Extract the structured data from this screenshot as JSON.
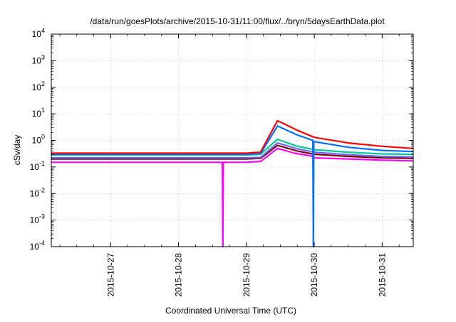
{
  "chart_data": {
    "type": "line",
    "title": "/data/run/goesPlots/archive/2015-10-31/11:00/flux/../bryn/5daysEarthData.plot",
    "xlabel": "Coordinated Universal Time (UTC)",
    "ylabel": "cSv/day",
    "xlim": [
      "2015-10-26 03:00",
      "2015-10-31 11:00"
    ],
    "ylim": [
      0.0001,
      10000
    ],
    "y_scale": "log",
    "grid": true,
    "x_ticks": [
      "2015-10-27",
      "2015-10-28",
      "2015-10-29",
      "2015-10-30",
      "2015-10-31"
    ],
    "y_ticks": [
      {
        "value": 0.0001,
        "base": "10",
        "exp": "-4"
      },
      {
        "value": 0.001,
        "base": "10",
        "exp": "-3"
      },
      {
        "value": 0.01,
        "base": "10",
        "exp": "-2"
      },
      {
        "value": 0.1,
        "base": "10",
        "exp": "-1"
      },
      {
        "value": 1,
        "base": "10",
        "exp": "0"
      },
      {
        "value": 10,
        "base": "10",
        "exp": "1"
      },
      {
        "value": 100,
        "base": "10",
        "exp": "2"
      },
      {
        "value": 1000,
        "base": "10",
        "exp": "3"
      },
      {
        "value": 10000,
        "base": "10",
        "exp": "4"
      }
    ],
    "series": [
      {
        "color": "#ff00ff",
        "x": [
          "2015-10-26 03:00",
          "2015-10-27 00:00",
          "2015-10-28 00:00",
          "2015-10-28 15:30",
          "2015-10-28 15:40",
          "2015-10-28 15:50",
          "2015-10-29 00:00",
          "2015-10-29 05:00",
          "2015-10-29 11:00",
          "2015-10-29 17:00",
          "2015-10-29 23:00",
          "2015-10-30 00:00",
          "2015-10-30 12:00",
          "2015-10-31 00:00",
          "2015-10-31 11:00"
        ],
        "y": [
          0.15,
          0.15,
          0.15,
          0.15,
          0.0001,
          0.15,
          0.15,
          0.16,
          0.5,
          0.33,
          0.26,
          0.22,
          0.2,
          0.18,
          0.17
        ]
      },
      {
        "color": "#800000",
        "x": [
          "2015-10-26 03:00",
          "2015-10-28 00:00",
          "2015-10-29 00:00",
          "2015-10-29 05:00",
          "2015-10-29 11:00",
          "2015-10-29 18:00",
          "2015-10-30 00:00",
          "2015-10-30 12:00",
          "2015-10-31 00:00",
          "2015-10-31 11:00"
        ],
        "y": [
          0.2,
          0.2,
          0.2,
          0.21,
          0.65,
          0.4,
          0.3,
          0.25,
          0.22,
          0.21
        ]
      },
      {
        "color": "#6a6aff",
        "x": [
          "2015-10-26 03:00",
          "2015-10-28 00:00",
          "2015-10-29 00:00",
          "2015-10-29 05:00",
          "2015-10-29 11:00",
          "2015-10-29 18:00",
          "2015-10-30 00:00",
          "2015-10-30 12:00",
          "2015-10-31 00:00",
          "2015-10-31 11:00"
        ],
        "y": [
          0.22,
          0.22,
          0.22,
          0.23,
          0.8,
          0.48,
          0.36,
          0.29,
          0.25,
          0.24
        ]
      },
      {
        "color": "#00c8a0",
        "x": [
          "2015-10-26 03:00",
          "2015-10-28 00:00",
          "2015-10-29 00:00",
          "2015-10-29 05:00",
          "2015-10-29 11:00",
          "2015-10-29 18:00",
          "2015-10-30 00:00",
          "2015-10-30 12:00",
          "2015-10-31 00:00",
          "2015-10-31 11:00"
        ],
        "y": [
          0.28,
          0.28,
          0.28,
          0.3,
          1.1,
          0.6,
          0.45,
          0.36,
          0.31,
          0.3
        ]
      },
      {
        "color": "#0070ff",
        "x": [
          "2015-10-26 03:00",
          "2015-10-28 00:00",
          "2015-10-29 00:00",
          "2015-10-29 05:00",
          "2015-10-29 11:00",
          "2015-10-29 18:00",
          "2015-10-29 23:30",
          "2015-10-29 23:40",
          "2015-10-29 23:50",
          "2015-10-30 12:00",
          "2015-10-31 00:00",
          "2015-10-31 11:00"
        ],
        "y": [
          0.3,
          0.3,
          0.3,
          0.32,
          3.5,
          1.6,
          1.0,
          0.0001,
          0.9,
          0.55,
          0.42,
          0.38
        ]
      },
      {
        "color": "#ff0000",
        "x": [
          "2015-10-26 03:00",
          "2015-10-28 00:00",
          "2015-10-29 00:00",
          "2015-10-29 05:00",
          "2015-10-29 11:00",
          "2015-10-29 18:00",
          "2015-10-30 00:00",
          "2015-10-30 12:00",
          "2015-10-31 00:00",
          "2015-10-31 11:00"
        ],
        "y": [
          0.33,
          0.33,
          0.33,
          0.36,
          5.5,
          2.4,
          1.3,
          0.8,
          0.6,
          0.5
        ]
      }
    ]
  }
}
